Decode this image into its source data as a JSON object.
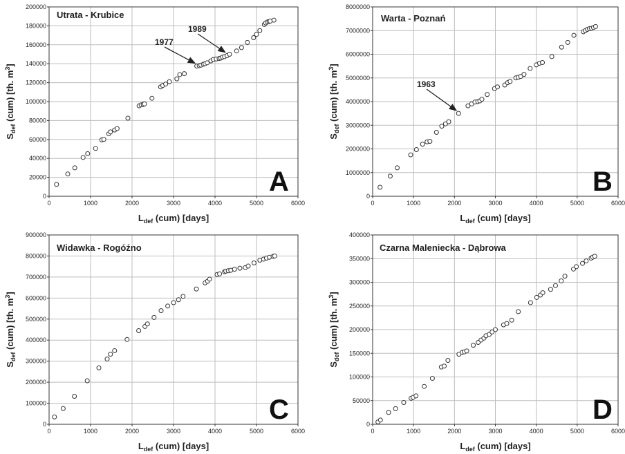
{
  "chart_data": [
    {
      "type": "scatter",
      "title": "Utrata - Krubice",
      "panel_label": "A",
      "xlabel": {
        "main": "L",
        "sub": "def",
        "rest": " (cum) [days]"
      },
      "ylabel": {
        "main": "S",
        "sub": "def",
        "rest": " (cum) [th. m",
        "sup": "3",
        "close": "]"
      },
      "xlim": [
        0,
        6000
      ],
      "ylim": [
        0,
        200000
      ],
      "xticks": [
        "0",
        "1000",
        "2000",
        "3000",
        "4000",
        "5000",
        "6000"
      ],
      "yticks": [
        "0",
        "20000",
        "40000",
        "60000",
        "80000",
        "100000",
        "120000",
        "140000",
        "160000",
        "180000",
        "200000"
      ],
      "grid": true,
      "annotations": [
        {
          "text": "1977",
          "x": 3570,
          "y": 137500
        },
        {
          "text": "1989",
          "x": 4300,
          "y": 149000
        }
      ],
      "x": [
        180,
        450,
        620,
        820,
        930,
        1120,
        1270,
        1320,
        1440,
        1480,
        1580,
        1640,
        1900,
        2170,
        2220,
        2270,
        2300,
        2480,
        2690,
        2740,
        2810,
        2900,
        3080,
        3150,
        3260,
        3560,
        3620,
        3660,
        3720,
        3760,
        3810,
        3900,
        3960,
        4030,
        4100,
        4140,
        4180,
        4230,
        4290,
        4350,
        4520,
        4640,
        4780,
        4930,
        5000,
        5080,
        5190,
        5220,
        5260,
        5300,
        5330,
        5420
      ],
      "y": [
        12500,
        23500,
        30000,
        41000,
        45000,
        50500,
        59500,
        60000,
        66000,
        68000,
        70000,
        71500,
        82500,
        95500,
        96500,
        97000,
        97500,
        103500,
        115500,
        117000,
        118500,
        121000,
        124000,
        128500,
        129500,
        137500,
        138000,
        138500,
        139500,
        140000,
        141000,
        143000,
        144500,
        145000,
        145500,
        146000,
        147000,
        147500,
        148500,
        150000,
        153500,
        157000,
        162500,
        167500,
        171000,
        175000,
        181500,
        183000,
        184000,
        184500,
        185000,
        186000
      ]
    },
    {
      "type": "scatter",
      "title": "Warta - Poznań",
      "panel_label": "B",
      "xlabel": {
        "main": "L",
        "sub": "def",
        "rest": " (cum) [days]"
      },
      "ylabel": {
        "main": "S",
        "sub": "def",
        "rest": " (cum) [th. m",
        "sup": "3",
        "close": "]"
      },
      "xlim": [
        0,
        6000
      ],
      "ylim": [
        0,
        8000000
      ],
      "xticks": [
        "0",
        "1000",
        "2000",
        "3000",
        "4000",
        "5000",
        "6000"
      ],
      "yticks": [
        "0",
        "1000000",
        "2000000",
        "3000000",
        "4000000",
        "5000000",
        "6000000",
        "7000000",
        "8000000"
      ],
      "grid": true,
      "annotations": [
        {
          "text": "1963",
          "x": 2100,
          "y": 3500000
        }
      ],
      "x": [
        180,
        430,
        600,
        930,
        1070,
        1220,
        1330,
        1400,
        1560,
        1690,
        1780,
        1860,
        2100,
        2330,
        2420,
        2500,
        2570,
        2620,
        2670,
        2800,
        2980,
        3050,
        3230,
        3300,
        3360,
        3500,
        3560,
        3620,
        3700,
        3850,
        4000,
        4080,
        4150,
        4380,
        4620,
        4770,
        4920,
        5150,
        5200,
        5250,
        5300,
        5350,
        5400,
        5450
      ],
      "y": [
        380000,
        850000,
        1200000,
        1750000,
        1970000,
        2200000,
        2300000,
        2320000,
        2700000,
        2960000,
        3060000,
        3150000,
        3500000,
        3820000,
        3900000,
        3980000,
        4000000,
        4030000,
        4100000,
        4300000,
        4550000,
        4620000,
        4700000,
        4800000,
        4850000,
        5000000,
        5030000,
        5060000,
        5150000,
        5400000,
        5550000,
        5620000,
        5650000,
        5900000,
        6300000,
        6500000,
        6800000,
        6950000,
        7000000,
        7050000,
        7080000,
        7100000,
        7130000,
        7170000
      ]
    },
    {
      "type": "scatter",
      "title": "Widawka - Rogóźno",
      "panel_label": "C",
      "xlabel": {
        "main": "L",
        "sub": "def",
        "rest": " (cum) [days]"
      },
      "ylabel": {
        "main": "S",
        "sub": "def",
        "rest": " (cum) [th. m",
        "sup": "3",
        "close": "]"
      },
      "xlim": [
        0,
        6000
      ],
      "ylim": [
        0,
        900000
      ],
      "xticks": [
        "0",
        "1000",
        "2000",
        "3000",
        "4000",
        "5000",
        "6000"
      ],
      "yticks": [
        "0",
        "100000",
        "200000",
        "300000",
        "400000",
        "500000",
        "600000",
        "700000",
        "800000",
        "900000"
      ],
      "grid": true,
      "annotations": [],
      "x": [
        130,
        340,
        610,
        920,
        1200,
        1400,
        1480,
        1580,
        1880,
        2160,
        2310,
        2370,
        2530,
        2700,
        2860,
        3000,
        3120,
        3230,
        3550,
        3760,
        3820,
        3870,
        4050,
        4110,
        4230,
        4260,
        4320,
        4380,
        4470,
        4600,
        4730,
        4800,
        4940,
        5080,
        5170,
        5240,
        5310,
        5400,
        5440
      ],
      "y": [
        35000,
        75000,
        133000,
        207000,
        268000,
        310000,
        333000,
        350000,
        403000,
        445000,
        465000,
        477000,
        508000,
        540000,
        562000,
        578000,
        592000,
        608000,
        643000,
        672000,
        680000,
        690000,
        712000,
        715000,
        725000,
        728000,
        730000,
        732000,
        737000,
        742000,
        745000,
        752000,
        767000,
        780000,
        785000,
        790000,
        794000,
        798000,
        800000
      ]
    },
    {
      "type": "scatter",
      "title": "Czarna Maleniecka - Dąbrowa",
      "panel_label": "D",
      "xlabel": {
        "main": "L",
        "sub": "def",
        "rest": " (cum) [days]"
      },
      "ylabel": {
        "main": "S",
        "sub": "def",
        "rest": " (cum) [th. m",
        "sup": "3",
        "close": "]"
      },
      "xlim": [
        0,
        6000
      ],
      "ylim": [
        0,
        400000
      ],
      "xticks": [
        "0",
        "1000",
        "2000",
        "3000",
        "4000",
        "5000",
        "6000"
      ],
      "yticks": [
        "0",
        "50000",
        "100000",
        "150000",
        "200000",
        "250000",
        "300000",
        "350000",
        "400000"
      ],
      "grid": true,
      "annotations": [],
      "x": [
        130,
        190,
        390,
        560,
        760,
        940,
        990,
        1060,
        1260,
        1460,
        1680,
        1750,
        1840,
        2110,
        2190,
        2240,
        2300,
        2460,
        2580,
        2650,
        2720,
        2770,
        2850,
        2920,
        3000,
        3200,
        3280,
        3400,
        3560,
        3860,
        4010,
        4100,
        4160,
        4350,
        4470,
        4610,
        4700,
        4910,
        4980,
        5130,
        5220,
        5340,
        5380,
        5430
      ],
      "y": [
        5000,
        9000,
        25000,
        33000,
        46000,
        55000,
        57000,
        60000,
        80000,
        97000,
        121000,
        123000,
        135000,
        148000,
        152000,
        153000,
        155000,
        167000,
        173000,
        178000,
        182000,
        187000,
        190000,
        195000,
        200000,
        210000,
        213000,
        220000,
        238000,
        257000,
        268000,
        273000,
        278000,
        285000,
        293000,
        303000,
        313000,
        328000,
        333000,
        340000,
        345000,
        351000,
        353000,
        355000
      ]
    }
  ]
}
